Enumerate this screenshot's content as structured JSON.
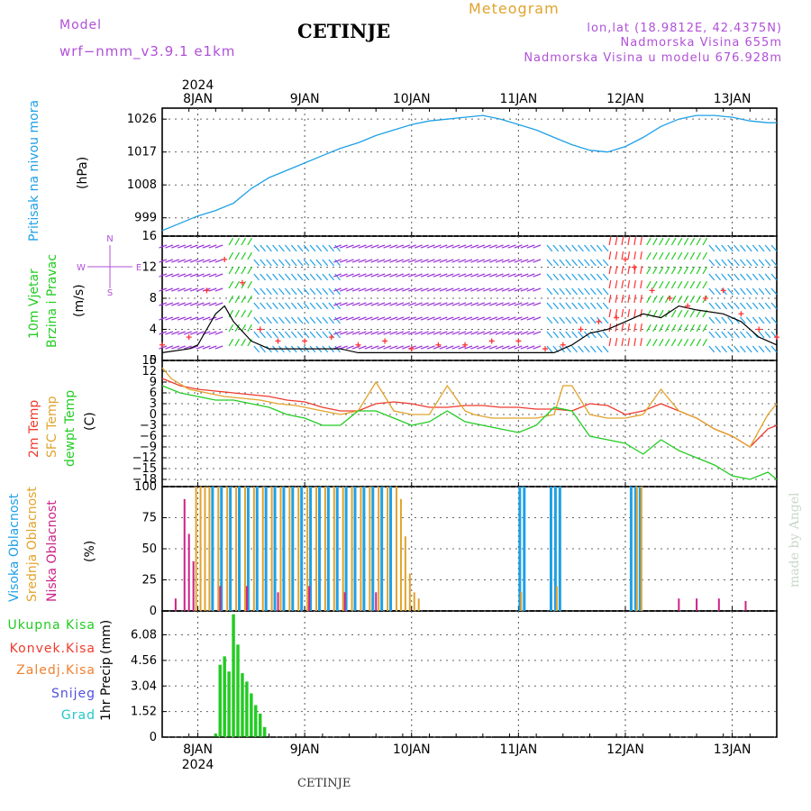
{
  "header": {
    "model_label": "Model",
    "model_name": "wrf−nmm_v3.9.1  e1km",
    "station": "CETINJE",
    "type": "Meteogram",
    "lonlat": "lon,lat (18.9812E, 42.4375N)",
    "elevation": "Nadmorska Visina 655m",
    "model_elevation": "Nadmorska Visina u modelu 676.928m"
  },
  "footer_station": "CETINJE",
  "watermark": "made by Angel",
  "colors": {
    "pressure": "#1fa0e6",
    "wind_speed": "#000000",
    "gust": "#ff3333",
    "temp_2m": "#ee3b2e",
    "sfc_temp": "#e1a32c",
    "dewpt": "#22cc22",
    "cloud_high": "#1fa0e6",
    "cloud_mid": "#e1a32c",
    "cloud_low": "#cc2288",
    "precip_total": "#22cc22",
    "label_purple": "#b050d8",
    "label_orange": "#e1a32c"
  },
  "time_axis": {
    "days": [
      "8JAN",
      "9JAN",
      "10JAN",
      "11JAN",
      "12JAN",
      "13JAN"
    ],
    "year": "2024",
    "start_hour": 0,
    "end_hour": 138
  },
  "chart_data": [
    {
      "type": "line",
      "panel": "pressure",
      "ylabel": "Pritisak na nivou mora",
      "unit": "(hPa)",
      "yticks": [
        "999",
        "1008",
        "1017",
        "1026"
      ],
      "ylim": [
        994,
        1029
      ],
      "series": [
        {
          "name": "Pritisak na nivou mora",
          "x": [
            0,
            4,
            8,
            12,
            16,
            20,
            24,
            28,
            32,
            36,
            40,
            44,
            48,
            52,
            56,
            60,
            64,
            68,
            72,
            76,
            80,
            84,
            88,
            92,
            96,
            100,
            104,
            108,
            112,
            116,
            120,
            124,
            128,
            132,
            136,
            138
          ],
          "y": [
            995.5,
            997.5,
            999.5,
            1001,
            1003,
            1007,
            1010,
            1012,
            1014,
            1016,
            1018,
            1019.5,
            1021.5,
            1023,
            1024.5,
            1025.5,
            1026,
            1026.5,
            1027,
            1026,
            1024.5,
            1023,
            1021,
            1019,
            1017.5,
            1017,
            1018.5,
            1021,
            1024,
            1026,
            1027,
            1027,
            1026.5,
            1025.5,
            1025,
            1025
          ]
        }
      ]
    },
    {
      "type": "line",
      "panel": "wind",
      "ylabel": "10m Vjetar Brzina i Pravac",
      "unit": "(m/s)",
      "compass": "N",
      "yticks": [
        "0",
        "4",
        "8",
        "12",
        "16"
      ],
      "ylim": [
        0,
        16
      ],
      "series": [
        {
          "name": "10m Vjetar",
          "x": [
            0,
            6,
            8,
            10,
            12,
            14,
            16,
            20,
            24,
            30,
            36,
            40,
            44,
            48,
            52,
            56,
            60,
            66,
            72,
            78,
            84,
            88,
            90,
            92,
            96,
            100,
            104,
            108,
            112,
            116,
            120,
            126,
            130,
            134,
            138
          ],
          "y": [
            1,
            1.5,
            2,
            4,
            6,
            7,
            5,
            2.5,
            1.5,
            1.5,
            1.5,
            1.5,
            1,
            1,
            1,
            1,
            1,
            1,
            1,
            1,
            1,
            1,
            1.5,
            2,
            3.5,
            4,
            5,
            6,
            5.5,
            7,
            6.5,
            6,
            5,
            3,
            2
          ]
        },
        {
          "name": "gust",
          "x": [
            0,
            6,
            10,
            14,
            18,
            22,
            26,
            32,
            38,
            44,
            50,
            56,
            62,
            68,
            74,
            80,
            86,
            90,
            94,
            98,
            102,
            104,
            106,
            110,
            114,
            118,
            122,
            126,
            130,
            134,
            138
          ],
          "y": [
            2,
            3,
            9,
            13,
            10,
            4,
            2.5,
            2.5,
            3,
            2,
            2.5,
            1.5,
            2,
            2,
            2.5,
            2.5,
            1.5,
            2,
            4,
            5,
            5.5,
            13,
            12,
            9,
            8,
            7,
            8,
            9,
            6,
            4,
            3
          ]
        }
      ]
    },
    {
      "type": "line",
      "panel": "temperature",
      "unit": "(C)",
      "yticks": [
        "15",
        "12",
        "9",
        "6",
        "3",
        "0",
        "−3",
        "−6",
        "−9",
        "−12",
        "−15",
        "−18"
      ],
      "ylim": [
        -20,
        15
      ],
      "series": [
        {
          "name": "2m Temp",
          "x": [
            0,
            4,
            8,
            12,
            16,
            20,
            24,
            28,
            32,
            36,
            40,
            44,
            48,
            52,
            56,
            60,
            64,
            68,
            72,
            76,
            80,
            84,
            88,
            92,
            96,
            100,
            104,
            108,
            112,
            116,
            120,
            124,
            128,
            132,
            136,
            138
          ],
          "y": [
            10,
            8,
            7,
            6.5,
            6,
            5.5,
            5,
            4,
            3.5,
            2,
            1,
            1,
            3,
            3.5,
            3,
            2,
            2,
            2.5,
            2.5,
            2,
            2,
            1.5,
            1.5,
            1,
            3,
            2.5,
            0,
            1,
            3,
            1,
            -1,
            -4,
            -6,
            -9,
            -4,
            -3
          ]
        },
        {
          "name": "SFC Temp",
          "x": [
            0,
            2,
            6,
            10,
            14,
            18,
            22,
            26,
            30,
            36,
            40,
            44,
            48,
            52,
            56,
            60,
            64,
            68,
            70,
            74,
            80,
            84,
            88,
            90,
            92,
            96,
            100,
            104,
            108,
            112,
            116,
            120,
            124,
            128,
            132,
            136,
            138
          ],
          "y": [
            13,
            10,
            7,
            6,
            5,
            4.5,
            4,
            3,
            2.5,
            1,
            0,
            1,
            9,
            1,
            0,
            0,
            8,
            1,
            0,
            -1,
            -1,
            -1,
            0,
            8,
            8,
            0,
            -1,
            -1,
            0,
            7,
            1,
            -1,
            -4,
            -6,
            -9,
            0,
            3
          ]
        },
        {
          "name": "dewpt Temp",
          "x": [
            0,
            4,
            8,
            12,
            16,
            20,
            24,
            28,
            32,
            36,
            40,
            44,
            48,
            52,
            56,
            60,
            64,
            68,
            72,
            76,
            80,
            84,
            88,
            92,
            96,
            100,
            104,
            108,
            112,
            116,
            120,
            124,
            128,
            132,
            136,
            138
          ],
          "y": [
            8,
            6,
            5,
            4,
            4,
            3,
            2,
            0,
            -1,
            -3,
            -3,
            1,
            1,
            -1,
            -3,
            -2,
            1,
            -2,
            -3,
            -4,
            -5,
            -3,
            2,
            1,
            -6,
            -7,
            -8,
            -11,
            -7,
            -10,
            -12,
            -14,
            -17,
            -18,
            -16,
            -18
          ]
        }
      ]
    },
    {
      "type": "bar",
      "panel": "cloud",
      "unit": "(%)",
      "yticks": [
        "0",
        "25",
        "50",
        "75",
        "100"
      ],
      "ylim": [
        0,
        100
      ],
      "series": [
        {
          "name": "Visoka Oblacnost",
          "x": [
            11,
            13,
            15,
            17,
            19,
            21,
            23,
            25,
            27,
            29,
            31,
            33,
            35,
            37,
            39,
            41,
            43,
            45,
            47,
            49,
            51,
            80,
            81,
            87,
            88,
            89,
            105,
            106,
            107
          ],
          "y": [
            100,
            100,
            100,
            100,
            100,
            100,
            100,
            100,
            100,
            100,
            100,
            100,
            100,
            100,
            100,
            100,
            100,
            100,
            100,
            100,
            100,
            100,
            100,
            100,
            100,
            100,
            100,
            100,
            100
          ]
        },
        {
          "name": "Srednja Oblacnost",
          "x": [
            7,
            8,
            9,
            10,
            12,
            14,
            16,
            18,
            20,
            22,
            24,
            26,
            28,
            30,
            32,
            34,
            36,
            38,
            40,
            42,
            44,
            46,
            48,
            50,
            52,
            53,
            54,
            55,
            56,
            57,
            80,
            88,
            106,
            107
          ],
          "y": [
            100,
            100,
            100,
            100,
            100,
            100,
            100,
            100,
            100,
            100,
            100,
            100,
            100,
            100,
            100,
            100,
            100,
            100,
            100,
            100,
            100,
            100,
            100,
            100,
            100,
            90,
            60,
            30,
            15,
            10,
            15,
            20,
            100,
            100
          ]
        },
        {
          "name": "Niska Oblacnost",
          "x": [
            2,
            4,
            5,
            6,
            12,
            18,
            25,
            32,
            40,
            47,
            115,
            119,
            124,
            130
          ],
          "y": [
            10,
            90,
            62,
            40,
            20,
            20,
            15,
            20,
            15,
            15,
            10,
            10,
            10,
            8
          ]
        }
      ]
    },
    {
      "type": "bar",
      "panel": "precip",
      "ylabel": "1hr Precip",
      "unit": "(mm)",
      "yticks": [
        "0",
        "1.52",
        "3.04",
        "4.56",
        "6.08"
      ],
      "ylim": [
        0,
        7.5
      ],
      "series": [
        {
          "name": "Ukupna Kisa",
          "x": [
            12,
            13,
            14,
            15,
            16,
            17,
            18,
            19,
            20,
            21,
            22,
            23
          ],
          "y": [
            0.2,
            4.3,
            4.8,
            3.9,
            7.3,
            5.5,
            3.8,
            3.3,
            2.6,
            1.9,
            1.4,
            0.6
          ]
        }
      ],
      "legend": [
        "Ukupna Kisa",
        "Konvek.Kisa",
        "Zaledj.Kisa",
        "Snijeg",
        "Grad"
      ]
    }
  ],
  "panel_labels": {
    "pressure": [
      "Pritisak na nivou mora"
    ],
    "wind": [
      "10m Vjetar",
      "Brzina i Pravac"
    ],
    "temp": [
      "2m Temp",
      "SFC Temp",
      "dewpt Temp"
    ],
    "cloud": [
      "Visoka Oblacnost",
      "Srednja Oblacnost",
      "Niska Oblacnost"
    ],
    "compass": [
      "N",
      "W",
      "E",
      "S"
    ]
  }
}
